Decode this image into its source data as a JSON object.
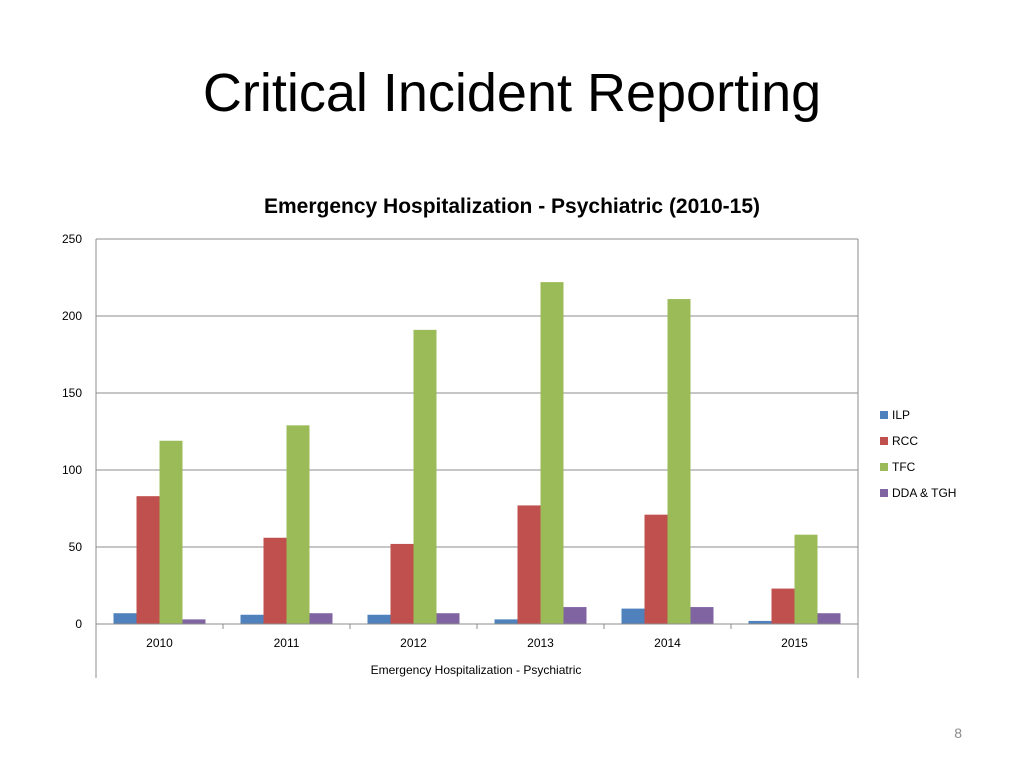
{
  "slide": {
    "title": "Critical Incident Reporting",
    "page_number": "8"
  },
  "chart_data": {
    "type": "bar",
    "title": "Emergency Hospitalization - Psychiatric (2010-15)",
    "xlabel": "Emergency Hospitalization - Psychiatric",
    "ylabel": "",
    "categories": [
      "2010",
      "2011",
      "2012",
      "2013",
      "2014",
      "2015"
    ],
    "ylim": [
      0,
      250
    ],
    "yticks": [
      0,
      50,
      100,
      150,
      200,
      250
    ],
    "grid": true,
    "legend_position": "right",
    "series": [
      {
        "name": "ILP",
        "color": "#4f81bd",
        "values": [
          7,
          6,
          6,
          3,
          10,
          2
        ]
      },
      {
        "name": "RCC",
        "color": "#c0504d",
        "values": [
          83,
          56,
          52,
          77,
          71,
          23
        ]
      },
      {
        "name": "TFC",
        "color": "#9bbb59",
        "values": [
          119,
          129,
          191,
          222,
          211,
          58
        ]
      },
      {
        "name": "DDA & TGH",
        "color": "#8064a2",
        "values": [
          3,
          7,
          7,
          11,
          11,
          7
        ]
      }
    ]
  }
}
